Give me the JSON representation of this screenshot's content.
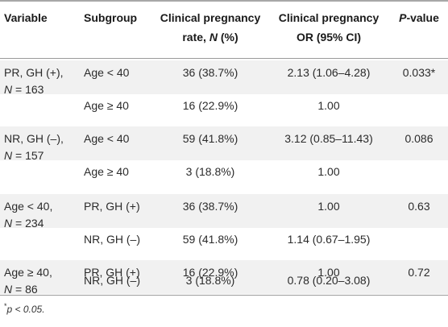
{
  "header": {
    "variable": "Variable",
    "subgroup": "Subgroup",
    "rate_line1": "Clinical pregnancy",
    "rate_line2": "rate, N (%)",
    "or_line1": "Clinical pregnancy",
    "or_line2": "OR (95% CI)",
    "pvalue": "P-value"
  },
  "rows": [
    {
      "var1": "PR, GH (+),",
      "var2": "N = 163",
      "subgroup": "Age < 40",
      "rate": "36 (38.7%)",
      "or": "2.13 (1.06–4.28)",
      "p": "0.033*"
    },
    {
      "var1": "",
      "var2": "",
      "subgroup": "Age ≥ 40",
      "rate": "16 (22.9%)",
      "or": "1.00",
      "p": ""
    },
    {
      "var1": "NR, GH (–),",
      "var2": "N = 157",
      "subgroup": "Age < 40",
      "rate": "59 (41.8%)",
      "or": "3.12 (0.85–11.43)",
      "p": "0.086"
    },
    {
      "var1": "",
      "var2": "",
      "subgroup": "Age ≥ 40",
      "rate": "3 (18.8%)",
      "or": "1.00",
      "p": ""
    },
    {
      "var1": "Age < 40,",
      "var2": "N = 234",
      "subgroup": "PR, GH (+)",
      "rate": "36 (38.7%)",
      "or": "1.00",
      "p": "0.63"
    },
    {
      "var1": "",
      "var2": "",
      "subgroup": "NR, GH (–)",
      "rate": "59 (41.8%)",
      "or": "1.14 (0.67–1.95)",
      "p": ""
    },
    {
      "var1": "Age ≥ 40,",
      "var2": "N = 86",
      "subgroup": "PR, GH (+)",
      "rate": "16 (22.9%)",
      "or": "1.00",
      "p": "0.72"
    },
    {
      "var1": "",
      "var2": "",
      "subgroup": "NR, GH (–)",
      "rate": "3 (18.8%)",
      "or": "0.78 (0.20–3.08)",
      "p": ""
    }
  ],
  "footnote": {
    "mark": "*",
    "text": "p < 0.05."
  }
}
